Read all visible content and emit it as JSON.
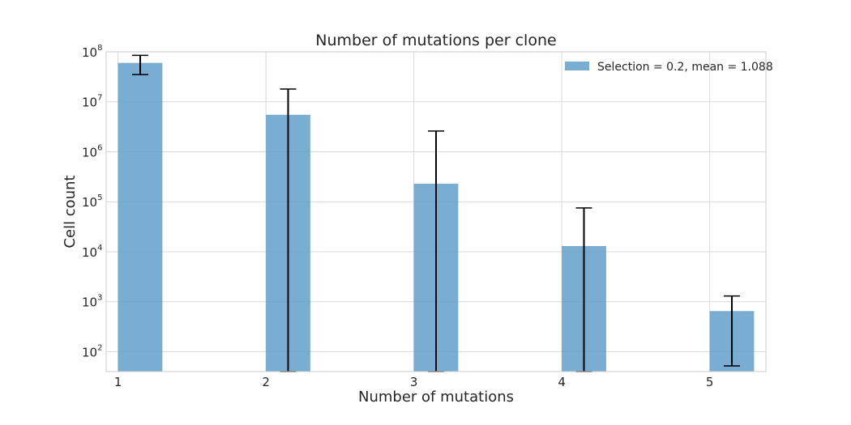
{
  "chart_data": {
    "type": "bar",
    "title": "Number of mutations per clone",
    "xlabel": "Number of mutations",
    "ylabel": "Cell count",
    "categories": [
      "1",
      "2",
      "3",
      "4",
      "5"
    ],
    "x": [
      1,
      2,
      3,
      4,
      5
    ],
    "yscale": "log",
    "ylim": [
      40,
      100000000
    ],
    "y_ticks": [
      {
        "base": "10",
        "exp": "2",
        "value": 100
      },
      {
        "base": "10",
        "exp": "3",
        "value": 1000
      },
      {
        "base": "10",
        "exp": "4",
        "value": 10000
      },
      {
        "base": "10",
        "exp": "5",
        "value": 100000
      },
      {
        "base": "10",
        "exp": "6",
        "value": 1000000
      },
      {
        "base": "10",
        "exp": "7",
        "value": 10000000
      },
      {
        "base": "10",
        "exp": "8",
        "value": 100000000
      }
    ],
    "grid": true,
    "legend_position": "top-right",
    "series": [
      {
        "name": "Selection = 0.2, mean = 1.088",
        "color": "#5b9bc8",
        "values": [
          60000000,
          5500000,
          230000,
          13000,
          650
        ],
        "error_low": [
          35000000,
          40,
          40,
          40,
          52
        ],
        "error_high": [
          85000000,
          18000000,
          2600000,
          75000,
          1300
        ]
      }
    ]
  }
}
